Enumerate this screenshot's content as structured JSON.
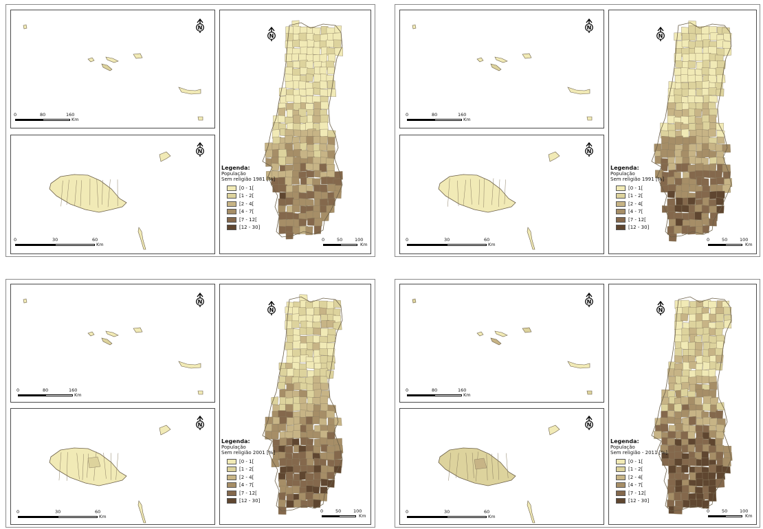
{
  "north_symbol_letter": "N",
  "scale_unit": "Km",
  "scale_azores": [
    "0",
    "80",
    "160"
  ],
  "scale_madeira": [
    "0",
    "30",
    "60"
  ],
  "scale_mainland": [
    "0",
    "50",
    "100"
  ],
  "legend_classes": [
    "[0 - 1[",
    "[1 - 2[",
    "[2 - 4[",
    "[4 - 7[",
    "[7 - 12[",
    "[12 - 30]"
  ],
  "legend_colors": [
    "#f1eab6",
    "#ddd39d",
    "#c7b486",
    "#a68e67",
    "#84684c",
    "#5f4630"
  ],
  "maps": [
    {
      "legend_title": "Legenda:",
      "legend_sub1": "População",
      "legend_sub2": "Sem religião 1981 [%]"
    },
    {
      "legend_title": "Legenda:",
      "legend_sub1": "População",
      "legend_sub2": "Sem religião 1991 [%]"
    },
    {
      "legend_title": "Legenda:",
      "legend_sub1": "População",
      "legend_sub2": "Sem religião 2001 [%]"
    },
    {
      "legend_title": "Legenda:",
      "legend_sub1": "População",
      "legend_sub2": "Sem religião - 2011 [%]"
    }
  ]
}
